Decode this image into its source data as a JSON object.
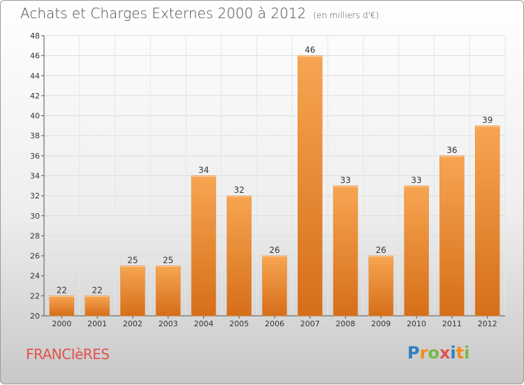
{
  "header": {
    "title": "Achats et Charges Externes 2000 à 2012",
    "unit": "(en milliers d'€)"
  },
  "commune": "FRANCIèRES",
  "brand": {
    "letters": [
      "P",
      "r",
      "o",
      "x",
      "i",
      "t",
      "i"
    ],
    "colors": [
      "#2f7fc1",
      "#f28c1c",
      "#7ab648",
      "#e2524d",
      "#2f7fc1",
      "#f28c1c",
      "#7ab648"
    ]
  },
  "chart_data": {
    "type": "bar",
    "categories": [
      "2000",
      "2001",
      "2002",
      "2003",
      "2004",
      "2005",
      "2006",
      "2007",
      "2008",
      "2009",
      "2010",
      "2011",
      "2012"
    ],
    "values": [
      22,
      22,
      25,
      25,
      34,
      32,
      26,
      46,
      33,
      26,
      33,
      36,
      39
    ],
    "ylim": [
      20,
      48
    ],
    "yticks": [
      20,
      22,
      24,
      26,
      28,
      30,
      32,
      34,
      36,
      38,
      40,
      42,
      44,
      46,
      48
    ],
    "grid": true,
    "bar_color": "#f0922f"
  }
}
